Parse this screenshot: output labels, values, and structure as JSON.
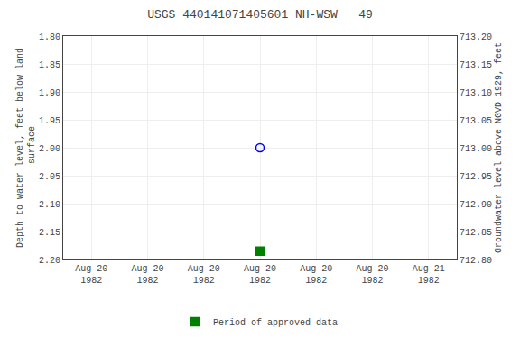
{
  "chart_data": {
    "type": "scatter",
    "title": "USGS 440141071405601 NH-WSW   49",
    "y_label": "Depth to water level, feet below land\n surface",
    "y2_label": "Groundwater level above NGVD 1929, feet",
    "categories": [
      "Aug 20\n1982",
      "Aug 20\n1982",
      "Aug 20\n1982",
      "Aug 20\n1982",
      "Aug 20\n1982",
      "Aug 20\n1982",
      "Aug 21\n1982"
    ],
    "series": [
      {
        "color": "blue",
        "marker": "circle-open",
        "values": [
          null,
          null,
          null,
          2.0,
          null,
          null,
          null
        ]
      },
      {
        "name": "Period of approved data",
        "color": "#008000",
        "marker": "square",
        "values": [
          null,
          null,
          null,
          2.185,
          null,
          null,
          null
        ]
      }
    ],
    "ylim": [
      2.2,
      1.8
    ],
    "yticks": [
      {
        "value": 1.8,
        "label": "1.80"
      },
      1.85,
      {
        "value": 1.9,
        "label": "1.90"
      },
      1.95,
      {
        "value": 2.0,
        "label": "2.00"
      },
      2.05,
      {
        "value": 2.1,
        "label": "2.10"
      },
      2.15,
      {
        "value": 2.2,
        "label": "2.20"
      }
    ],
    "y2lim": [
      712.8,
      713.2
    ],
    "y2ticks": [
      {
        "value": 712.8,
        "label": "712.80"
      },
      712.85,
      {
        "value": 712.9,
        "label": "712.90"
      },
      712.95,
      {
        "value": 713.0,
        "label": "713.00"
      },
      713.05,
      {
        "value": 713.1,
        "label": "713.10"
      },
      713.15,
      {
        "value": 713.2,
        "label": "713.20"
      }
    ],
    "grid": true,
    "legend": "bottom"
  }
}
